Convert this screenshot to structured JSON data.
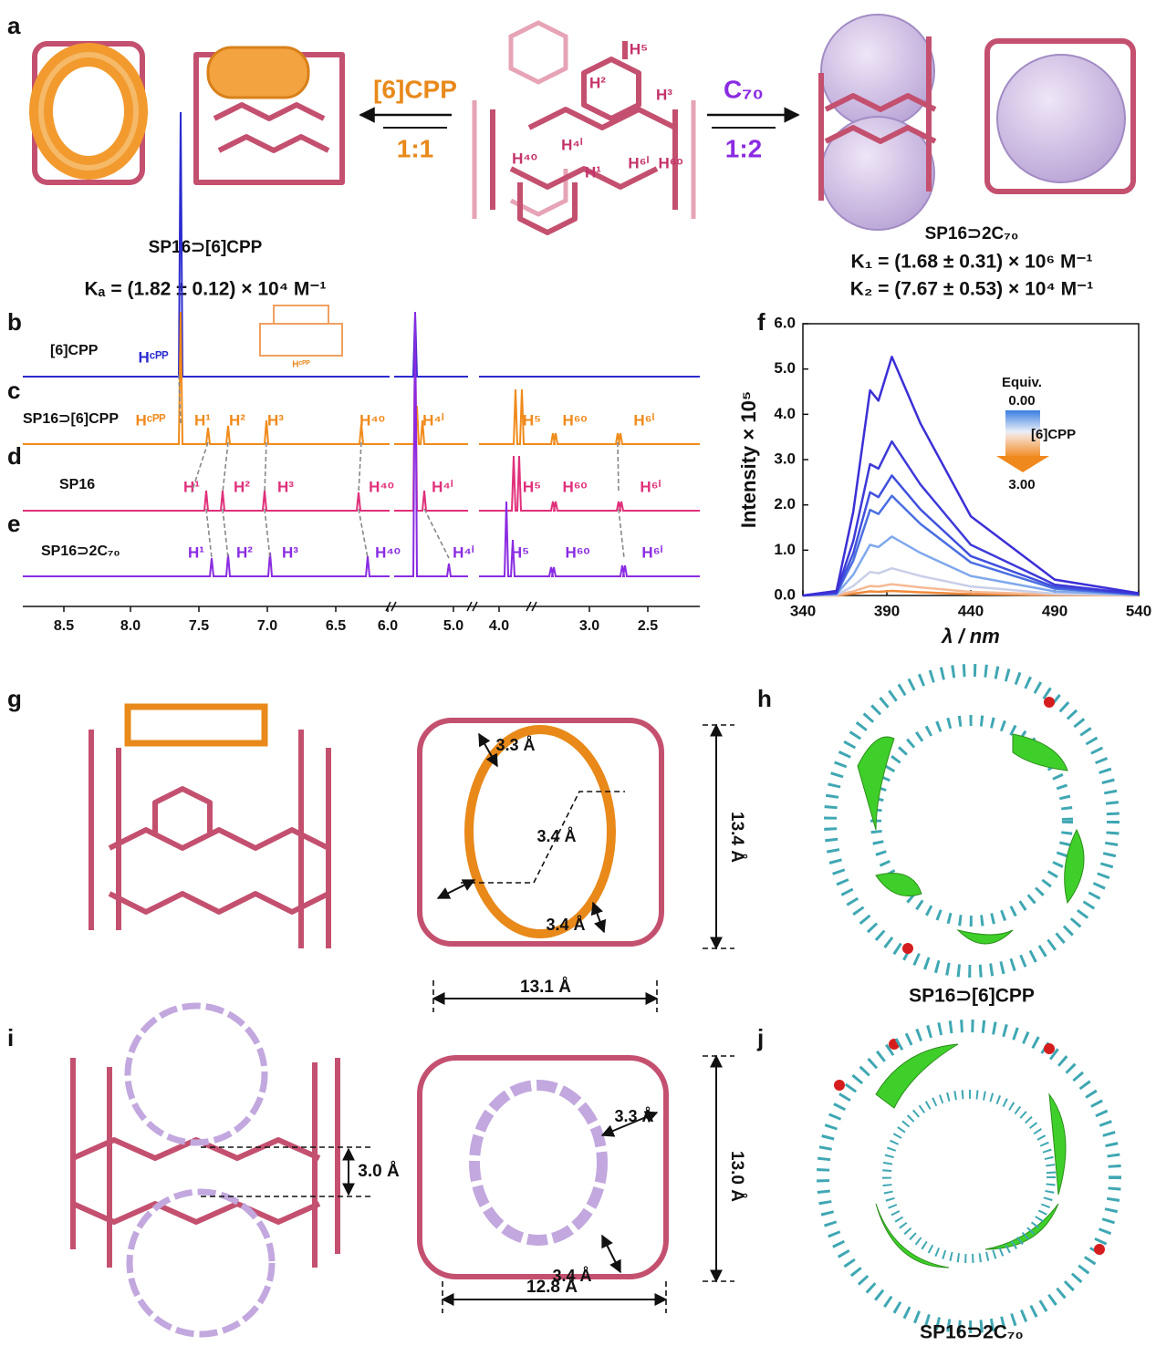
{
  "panel_labels": [
    "a",
    "b",
    "c",
    "d",
    "e",
    "f",
    "g",
    "h",
    "i",
    "j"
  ],
  "panel_a": {
    "left_guest": "[6]CPP",
    "left_ratio": "1:1",
    "right_guest": "C₇₀",
    "right_ratio": "1:2",
    "left_caption": "SP16⊃[6]CPP",
    "left_constant": "Kₐ = (1.82 ± 0.12) × 10⁴ M⁻¹",
    "right_caption": "SP16⊃2C₇₀",
    "right_constants": [
      "K₁ = (1.68 ± 0.31) × 10⁶ M⁻¹",
      "K₂ = (7.67 ± 0.53) × 10⁴ M⁻¹"
    ],
    "proton_labels": [
      "H⁵",
      "H²",
      "H³",
      "H⁴ⁱ",
      "H⁴ᵒ",
      "H¹",
      "H⁶ⁱ",
      "H⁶ᵒ"
    ]
  },
  "nmr": {
    "inset_label": "Hᶜᴾᴾ",
    "rows": [
      {
        "label": "[6]CPP",
        "peak_labels": [
          "Hᶜᴾᴾ"
        ]
      },
      {
        "label": "SP16⊃[6]CPP",
        "peak_labels": [
          "Hᶜᴾᴾ",
          "H¹",
          "H²",
          "H³",
          "H⁴ᵒ",
          "H⁴ⁱ",
          "H⁵",
          "H⁶ᵒ",
          "H⁶ⁱ"
        ]
      },
      {
        "label": "SP16",
        "peak_labels": [
          "H¹",
          "H²",
          "H³",
          "H⁴ᵒ",
          "H⁴ⁱ",
          "H⁵",
          "H⁶ᵒ",
          "H⁶ⁱ"
        ]
      },
      {
        "label": "SP16⊃2C₇₀",
        "peak_labels": [
          "H¹",
          "H²",
          "H³",
          "H⁴ᵒ",
          "H⁴ⁱ",
          "H⁵",
          "H⁶ᵒ",
          "H⁶ⁱ"
        ]
      }
    ],
    "x_tick_labels": [
      "8.5",
      "8.0",
      "7.5",
      "7.0",
      "6.5",
      "6.0",
      "5.0",
      "4.0",
      "3.0",
      "2.5"
    ]
  },
  "chart_data": {
    "type": "line",
    "x_label": "λ / nm",
    "y_label": "Intensity × 10⁵",
    "x": [
      340,
      360,
      370,
      380,
      385,
      393,
      410,
      440,
      490,
      540
    ],
    "xlim": [
      340,
      540
    ],
    "xticks": [
      340,
      390,
      440,
      490,
      540
    ],
    "ylim": [
      0,
      6
    ],
    "yticks": [
      {
        "value": 0,
        "label": "0.0"
      },
      {
        "value": 1,
        "label": "1.0"
      },
      {
        "value": 2,
        "label": "2.0"
      },
      {
        "value": 3,
        "label": "3.0"
      },
      {
        "value": 4,
        "label": "4.0"
      },
      {
        "value": 5,
        "label": "5.0"
      },
      {
        "value": 6,
        "label": "6.0"
      }
    ],
    "colorbar": {
      "title": "Equiv.",
      "min_label": "0.00",
      "guest": "[6]CPP",
      "max_label": "3.00"
    },
    "series": [
      {
        "color": "#3b2fd6",
        "values": [
          0,
          0.1,
          1.85,
          4.53,
          4.3,
          5.27,
          3.8,
          1.75,
          0.35,
          0.05
        ]
      },
      {
        "color": "#3d3ad8",
        "values": [
          0,
          0.07,
          1.2,
          2.9,
          2.8,
          3.4,
          2.45,
          1.12,
          0.24,
          0.03
        ]
      },
      {
        "color": "#4050dc",
        "values": [
          0,
          0.05,
          0.93,
          2.28,
          2.17,
          2.65,
          1.9,
          0.87,
          0.19,
          0.03
        ]
      },
      {
        "color": "#4a6fe0",
        "values": [
          0,
          0.04,
          0.77,
          1.89,
          1.8,
          2.2,
          1.58,
          0.73,
          0.15,
          0.02
        ]
      },
      {
        "color": "#7fa8ec",
        "values": [
          0,
          0.03,
          0.46,
          1.12,
          1.07,
          1.3,
          0.94,
          0.43,
          0.09,
          0.01
        ]
      },
      {
        "color": "#c9cfe8",
        "values": [
          0,
          0.01,
          0.21,
          0.52,
          0.49,
          0.6,
          0.43,
          0.2,
          0.04,
          0.01
        ]
      },
      {
        "color": "#f5b995",
        "values": [
          0,
          0.01,
          0.09,
          0.21,
          0.2,
          0.25,
          0.18,
          0.08,
          0.02,
          0
        ]
      },
      {
        "color": "#f08a3a",
        "values": [
          0,
          0,
          0.04,
          0.09,
          0.08,
          0.1,
          0.07,
          0.03,
          0.01,
          0
        ]
      }
    ]
  },
  "panel_g": {
    "distances": [
      "3.3 Å",
      "3.4 Å",
      "3.4 Å"
    ],
    "height": "13.4 Å",
    "width": "13.1 Å"
  },
  "panel_h": {
    "caption": "SP16⊃[6]CPP"
  },
  "panel_i": {
    "distances": [
      "3.3 Å",
      "3.4 Å"
    ],
    "separation": "3.0 Å",
    "height": "13.0 Å",
    "width": "12.8 Å"
  },
  "panel_j": {
    "caption": "SP16⊃2C₇₀"
  }
}
